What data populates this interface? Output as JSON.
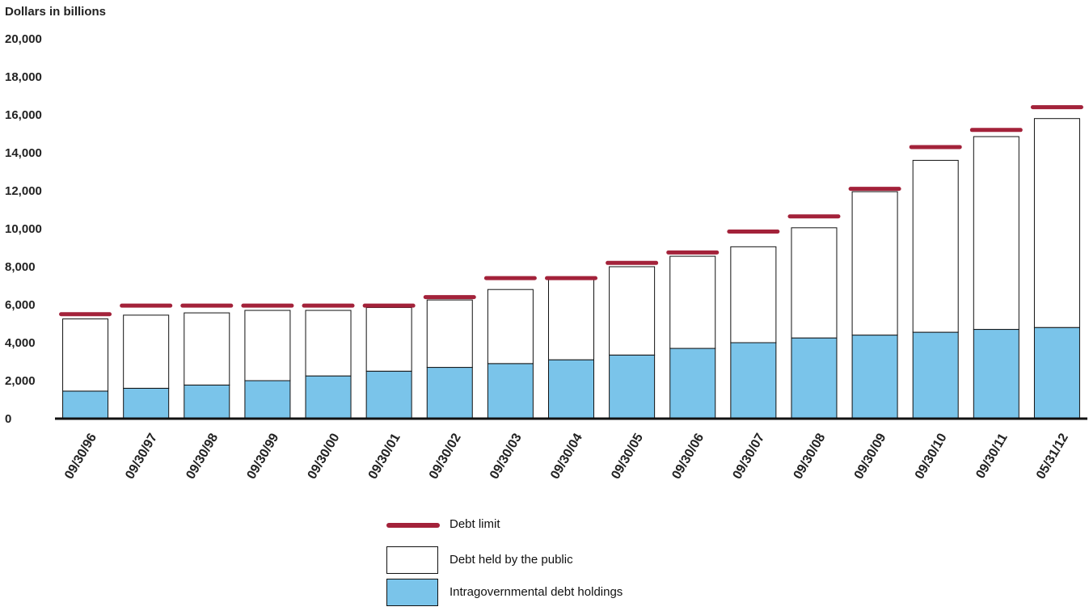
{
  "chart_data": {
    "type": "bar",
    "ylabel": "Dollars in billions",
    "ylim": [
      0,
      20000
    ],
    "yticks": [
      "0",
      "2,000",
      "4,000",
      "6,000",
      "8,000",
      "10,000",
      "12,000",
      "14,000",
      "16,000",
      "18,000",
      "20,000"
    ],
    "categories": [
      "09/30/96",
      "09/30/97",
      "09/30/98",
      "09/30/99",
      "09/30/00",
      "09/30/01",
      "09/30/02",
      "09/30/03",
      "09/30/04",
      "09/30/05",
      "09/30/06",
      "09/30/07",
      "09/30/08",
      "09/30/09",
      "09/30/10",
      "09/30/11",
      "05/31/12"
    ],
    "stacked": true,
    "series": [
      {
        "name": "Intragovernmental debt holdings",
        "color": "#7ac4ea",
        "values": [
          1450,
          1600,
          1770,
          2000,
          2250,
          2500,
          2700,
          2900,
          3100,
          3350,
          3700,
          4000,
          4250,
          4400,
          4550,
          4700,
          4800
        ]
      },
      {
        "name": "Debt held by the public",
        "color": "#ffffff",
        "values": [
          3800,
          3850,
          3800,
          3700,
          3450,
          3350,
          3550,
          3900,
          4300,
          4650,
          4850,
          5050,
          5800,
          7550,
          9050,
          10150,
          11000
        ]
      }
    ],
    "debt_limit": {
      "name": "Debt limit",
      "color": "#a3223a",
      "values": [
        5500,
        5950,
        5950,
        5950,
        5950,
        5950,
        6400,
        7400,
        7400,
        8200,
        8750,
        9850,
        10650,
        12100,
        14300,
        15200,
        16400
      ]
    },
    "legend": [
      {
        "name": "Debt limit",
        "kind": "line",
        "color": "#a3223a"
      },
      {
        "name": "Debt held by the public",
        "kind": "box",
        "color": "#ffffff"
      },
      {
        "name": "Intragovernmental debt holdings",
        "kind": "box",
        "color": "#7ac4ea"
      }
    ],
    "legend_position": "bottom-center",
    "grid": false
  }
}
